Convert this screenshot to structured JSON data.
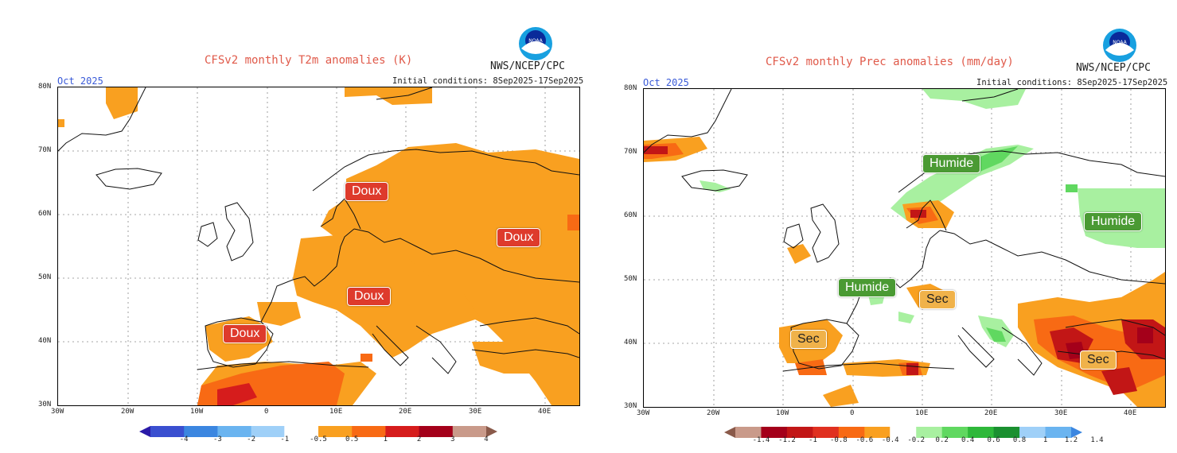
{
  "left": {
    "title": "CFSv2 monthly T2m anomalies (K)",
    "agency": "NWS/NCEP/CPC",
    "month": "Oct 2025",
    "init": "Initial conditions: 8Sep2025-17Sep2025",
    "lat_labels": [
      "80N",
      "70N",
      "60N",
      "50N",
      "40N",
      "30N"
    ],
    "lon_labels": [
      "30W",
      "20W",
      "10W",
      "0",
      "10E",
      "20E",
      "30E",
      "40E"
    ],
    "badges": [
      "Doux",
      "Doux",
      "Doux",
      "Doux"
    ],
    "colorbar": {
      "ticks": [
        "-4",
        "-3",
        "-2",
        "-1",
        "-0.5",
        "0.5",
        "1",
        "2",
        "3",
        "4"
      ],
      "colors": [
        "#2a1aa8",
        "#3a4fd0",
        "#3b86e0",
        "#6ab4f0",
        "#9fd0f8",
        "#ffffff",
        "#f9a020",
        "#f86a14",
        "#d61c1c",
        "#a4001a",
        "#c99a8a",
        "#8a5a4a"
      ]
    }
  },
  "right": {
    "title": "CFSv2 monthly Prec anomalies (mm/day)",
    "agency": "NWS/NCEP/CPC",
    "month": "Oct 2025",
    "init": "Initial conditions: 8Sep2025-17Sep2025",
    "lat_labels": [
      "80N",
      "70N",
      "60N",
      "50N",
      "40N",
      "30N"
    ],
    "lon_labels": [
      "30W",
      "20W",
      "10W",
      "0",
      "10E",
      "20E",
      "30E",
      "40E"
    ],
    "badges": {
      "humide_1": "Humide",
      "humide_2": "Humide",
      "humide_3": "Humide",
      "sec_1": "Sec",
      "sec_2": "Sec",
      "sec_3": "Sec"
    },
    "colorbar": {
      "ticks": [
        "-1.4",
        "-1.2",
        "-1",
        "-0.8",
        "-0.6",
        "-0.4",
        "-0.2",
        "0.2",
        "0.4",
        "0.6",
        "0.8",
        "1",
        "1.2",
        "1.4"
      ],
      "colors": [
        "#8a5a4a",
        "#c99a8a",
        "#a4001a",
        "#c21616",
        "#e03020",
        "#f86a14",
        "#f9a020",
        "#ffffff",
        "#a8f0a0",
        "#60d860",
        "#2eb83a",
        "#1a9030",
        "#9fd0f8",
        "#6ab4f0",
        "#3b86e0"
      ]
    }
  }
}
